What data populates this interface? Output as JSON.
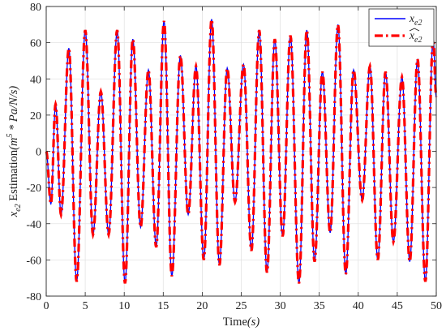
{
  "chart_data": {
    "type": "line",
    "xlabel_text": "Time",
    "xlabel_unit": "(s)",
    "ylabel_prefix": "x",
    "ylabel_sub": "e2",
    "ylabel_text": " Estimation",
    "ylabel_unit_a": "(m",
    "ylabel_unit_sup": "5",
    "ylabel_unit_b": " * Pa/N/s)",
    "xlim": [
      0,
      50
    ],
    "ylim": [
      -80,
      80
    ],
    "xticks": [
      "0",
      "5",
      "10",
      "15",
      "20",
      "25",
      "30",
      "35",
      "40",
      "45",
      "50"
    ],
    "yticks": [
      "-80",
      "-60",
      "-40",
      "-20",
      "0",
      "20",
      "40",
      "60",
      "80"
    ],
    "grid": true,
    "legend_position": "top-right",
    "series": [
      {
        "name": "x_e2",
        "legend_base": "x",
        "legend_sub": "e2",
        "color": "#0000ff",
        "style": "solid",
        "peaks": [
          [
            0.0,
            0
          ],
          [
            0.6,
            -29
          ],
          [
            1.2,
            26
          ],
          [
            1.9,
            -35
          ],
          [
            2.9,
            57
          ],
          [
            3.9,
            -72
          ],
          [
            5.0,
            67
          ],
          [
            6.0,
            -46
          ],
          [
            7.0,
            33
          ],
          [
            8.0,
            -46
          ],
          [
            9.1,
            67
          ],
          [
            10.1,
            -73
          ],
          [
            11.1,
            62
          ],
          [
            12.1,
            -42
          ],
          [
            13.1,
            45
          ],
          [
            14.1,
            -53
          ],
          [
            15.1,
            72
          ],
          [
            16.1,
            -69
          ],
          [
            17.2,
            53
          ],
          [
            18.2,
            -35
          ],
          [
            19.2,
            47
          ],
          [
            20.2,
            -60
          ],
          [
            21.2,
            73
          ],
          [
            22.2,
            -63
          ],
          [
            23.2,
            46
          ],
          [
            24.2,
            -28
          ],
          [
            25.3,
            48
          ],
          [
            26.3,
            -55
          ],
          [
            27.3,
            67
          ],
          [
            28.3,
            -67
          ],
          [
            29.3,
            62
          ],
          [
            30.3,
            -47
          ],
          [
            31.3,
            64
          ],
          [
            32.4,
            -73
          ],
          [
            33.4,
            67
          ],
          [
            34.4,
            -61
          ],
          [
            35.4,
            44
          ],
          [
            36.4,
            -45
          ],
          [
            37.4,
            70
          ],
          [
            38.4,
            -68
          ],
          [
            39.4,
            45
          ],
          [
            40.5,
            -27
          ],
          [
            41.5,
            47
          ],
          [
            42.5,
            -60
          ],
          [
            43.5,
            44
          ],
          [
            44.5,
            -50
          ],
          [
            45.6,
            41
          ],
          [
            46.6,
            -61
          ],
          [
            47.6,
            51
          ],
          [
            48.6,
            -72
          ],
          [
            49.6,
            62
          ],
          [
            50.0,
            30
          ]
        ]
      },
      {
        "name": "x_e2 estimate",
        "legend_base": "x",
        "legend_sub": "e2",
        "legend_hat": true,
        "color": "#ff0000",
        "style": "dashdot",
        "peaks_same_as": "x_e2"
      }
    ]
  }
}
